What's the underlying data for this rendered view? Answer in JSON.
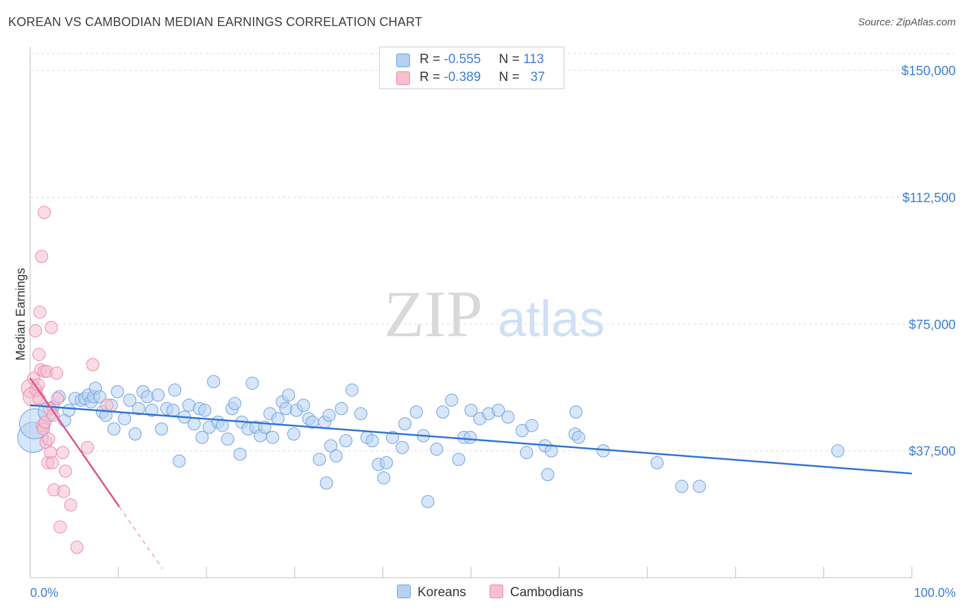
{
  "header": {
    "title": "KOREAN VS CAMBODIAN MEDIAN EARNINGS CORRELATION CHART",
    "source": "Source: ZipAtlas.com"
  },
  "watermark": {
    "part1": "ZIP",
    "part2": "atlas"
  },
  "legend": {
    "rows": [
      {
        "r_label": "R =",
        "r_value": "-0.555",
        "n_label": "N =",
        "n_value": "113"
      },
      {
        "r_label": "R =",
        "r_value": "-0.389",
        "n_label": "N =",
        "n_value": "37"
      }
    ],
    "bottom": {
      "koreans": "Koreans",
      "cambodians": "Cambodians"
    }
  },
  "colors": {
    "korean_fill": "#b7d1f3",
    "korean_stroke": "#6fa0e2",
    "korean_line": "#2f72d2",
    "cambodian_fill": "#f7bfd0",
    "cambodian_stroke": "#e98aa9",
    "cambodian_line": "#e0508a",
    "axis_label": "#3b7dd8",
    "grid": "#dcdcdc"
  },
  "chart_data": {
    "type": "scatter",
    "title": "KOREAN VS CAMBODIAN MEDIAN EARNINGS CORRELATION CHART",
    "xlabel": "",
    "ylabel": "Median Earnings",
    "xlim": [
      0,
      100
    ],
    "ylim": [
      0,
      155000
    ],
    "x_tick_labels": {
      "min": "0.0%",
      "max": "100.0%"
    },
    "y_ticks": [
      37500,
      75000,
      112500,
      150000
    ],
    "y_tick_labels": [
      "$37,500",
      "$75,000",
      "$112,500",
      "$150,000"
    ],
    "series": [
      {
        "name": "Koreans",
        "trend": {
          "x": [
            0,
            100
          ],
          "y": [
            51000,
            30800
          ]
        },
        "points": [
          {
            "x": 0.3,
            "y": 41500,
            "s": "big"
          },
          {
            "x": 0.5,
            "y": 45500,
            "s": "big"
          },
          {
            "x": 2.0,
            "y": 49000,
            "s": "med"
          },
          {
            "x": 2.6,
            "y": 50500
          },
          {
            "x": 3.3,
            "y": 53500
          },
          {
            "x": 3.9,
            "y": 46500
          },
          {
            "x": 4.4,
            "y": 49500
          },
          {
            "x": 5.1,
            "y": 53000
          },
          {
            "x": 5.8,
            "y": 52500
          },
          {
            "x": 6.2,
            "y": 53000
          },
          {
            "x": 6.6,
            "y": 54000
          },
          {
            "x": 6.9,
            "y": 52000
          },
          {
            "x": 7.2,
            "y": 53500
          },
          {
            "x": 7.4,
            "y": 56000
          },
          {
            "x": 7.9,
            "y": 53500
          },
          {
            "x": 8.2,
            "y": 49000
          },
          {
            "x": 8.6,
            "y": 48000
          },
          {
            "x": 9.2,
            "y": 51000
          },
          {
            "x": 9.5,
            "y": 44000
          },
          {
            "x": 9.9,
            "y": 55000
          },
          {
            "x": 10.7,
            "y": 47000
          },
          {
            "x": 11.3,
            "y": 52500
          },
          {
            "x": 11.9,
            "y": 42500
          },
          {
            "x": 12.3,
            "y": 50000
          },
          {
            "x": 12.8,
            "y": 55000
          },
          {
            "x": 13.3,
            "y": 53500
          },
          {
            "x": 13.8,
            "y": 49500
          },
          {
            "x": 14.5,
            "y": 54000
          },
          {
            "x": 14.9,
            "y": 44000
          },
          {
            "x": 15.5,
            "y": 50000
          },
          {
            "x": 16.2,
            "y": 49500
          },
          {
            "x": 16.4,
            "y": 55500
          },
          {
            "x": 16.9,
            "y": 34500
          },
          {
            "x": 17.5,
            "y": 47500
          },
          {
            "x": 18.0,
            "y": 51000
          },
          {
            "x": 18.6,
            "y": 45500
          },
          {
            "x": 19.2,
            "y": 50000
          },
          {
            "x": 19.5,
            "y": 41500
          },
          {
            "x": 19.8,
            "y": 49500
          },
          {
            "x": 20.3,
            "y": 44500
          },
          {
            "x": 20.8,
            "y": 58000
          },
          {
            "x": 21.3,
            "y": 46000
          },
          {
            "x": 21.8,
            "y": 45000
          },
          {
            "x": 22.4,
            "y": 41000
          },
          {
            "x": 22.9,
            "y": 50000
          },
          {
            "x": 23.2,
            "y": 51500
          },
          {
            "x": 23.8,
            "y": 36500
          },
          {
            "x": 24.0,
            "y": 46000
          },
          {
            "x": 24.7,
            "y": 44000
          },
          {
            "x": 25.2,
            "y": 57500
          },
          {
            "x": 25.6,
            "y": 44500
          },
          {
            "x": 26.1,
            "y": 42000
          },
          {
            "x": 26.6,
            "y": 44500
          },
          {
            "x": 27.2,
            "y": 48500
          },
          {
            "x": 27.5,
            "y": 41500
          },
          {
            "x": 28.1,
            "y": 47000
          },
          {
            "x": 28.6,
            "y": 52000
          },
          {
            "x": 29.0,
            "y": 50000
          },
          {
            "x": 29.3,
            "y": 54000
          },
          {
            "x": 29.9,
            "y": 42500
          },
          {
            "x": 30.2,
            "y": 49500
          },
          {
            "x": 31.0,
            "y": 51000
          },
          {
            "x": 31.6,
            "y": 47000
          },
          {
            "x": 32.0,
            "y": 46000
          },
          {
            "x": 32.8,
            "y": 35000
          },
          {
            "x": 33.4,
            "y": 46000
          },
          {
            "x": 33.6,
            "y": 28000
          },
          {
            "x": 34.1,
            "y": 39000
          },
          {
            "x": 34.7,
            "y": 36000
          },
          {
            "x": 35.3,
            "y": 50000
          },
          {
            "x": 35.8,
            "y": 40500
          },
          {
            "x": 36.5,
            "y": 55500
          },
          {
            "x": 37.5,
            "y": 48500
          },
          {
            "x": 38.2,
            "y": 41500
          },
          {
            "x": 38.8,
            "y": 40500
          },
          {
            "x": 39.5,
            "y": 33500
          },
          {
            "x": 40.1,
            "y": 29500
          },
          {
            "x": 40.4,
            "y": 34000
          },
          {
            "x": 41.1,
            "y": 41500
          },
          {
            "x": 42.2,
            "y": 38500
          },
          {
            "x": 42.5,
            "y": 45500
          },
          {
            "x": 43.8,
            "y": 49000
          },
          {
            "x": 44.6,
            "y": 42000
          },
          {
            "x": 45.1,
            "y": 22500
          },
          {
            "x": 46.1,
            "y": 38000
          },
          {
            "x": 46.8,
            "y": 49000
          },
          {
            "x": 47.8,
            "y": 52500
          },
          {
            "x": 48.6,
            "y": 35000
          },
          {
            "x": 49.2,
            "y": 41500
          },
          {
            "x": 49.9,
            "y": 41500
          },
          {
            "x": 50.0,
            "y": 49500
          },
          {
            "x": 51.0,
            "y": 47000
          },
          {
            "x": 52.0,
            "y": 48500
          },
          {
            "x": 53.1,
            "y": 49500
          },
          {
            "x": 54.2,
            "y": 47500
          },
          {
            "x": 55.8,
            "y": 43500
          },
          {
            "x": 56.3,
            "y": 37000
          },
          {
            "x": 56.9,
            "y": 45000
          },
          {
            "x": 58.4,
            "y": 39000
          },
          {
            "x": 58.7,
            "y": 30500
          },
          {
            "x": 59.1,
            "y": 37500
          },
          {
            "x": 61.8,
            "y": 42500
          },
          {
            "x": 61.9,
            "y": 49000
          },
          {
            "x": 62.2,
            "y": 41500
          },
          {
            "x": 65.0,
            "y": 37500
          },
          {
            "x": 71.1,
            "y": 34000
          },
          {
            "x": 73.9,
            "y": 27000
          },
          {
            "x": 75.9,
            "y": 27000
          },
          {
            "x": 91.6,
            "y": 37500
          },
          {
            "x": 33.9,
            "y": 48000
          }
        ]
      },
      {
        "name": "Cambodians",
        "trend": {
          "x": [
            0,
            10.1
          ],
          "y": [
            59000,
            21000
          ]
        },
        "trend_dashed": {
          "x": [
            10.1,
            15.0
          ],
          "y": [
            21000,
            2700
          ]
        },
        "points": [
          {
            "x": 0.1,
            "y": 56000,
            "s": "med"
          },
          {
            "x": 0.3,
            "y": 53500,
            "s": "med"
          },
          {
            "x": 0.4,
            "y": 59000
          },
          {
            "x": 0.6,
            "y": 73000
          },
          {
            "x": 0.7,
            "y": 55500
          },
          {
            "x": 0.9,
            "y": 57000
          },
          {
            "x": 1.0,
            "y": 53000
          },
          {
            "x": 1.0,
            "y": 66000
          },
          {
            "x": 1.1,
            "y": 78500
          },
          {
            "x": 1.2,
            "y": 61500
          },
          {
            "x": 1.3,
            "y": 95000
          },
          {
            "x": 1.4,
            "y": 45000
          },
          {
            "x": 1.5,
            "y": 44000
          },
          {
            "x": 1.6,
            "y": 61000
          },
          {
            "x": 1.6,
            "y": 108000
          },
          {
            "x": 1.7,
            "y": 46000
          },
          {
            "x": 1.8,
            "y": 40000
          },
          {
            "x": 1.9,
            "y": 61000
          },
          {
            "x": 2.0,
            "y": 34000
          },
          {
            "x": 2.1,
            "y": 41000
          },
          {
            "x": 2.2,
            "y": 50000
          },
          {
            "x": 2.3,
            "y": 37000
          },
          {
            "x": 2.4,
            "y": 74000
          },
          {
            "x": 2.5,
            "y": 34000
          },
          {
            "x": 2.6,
            "y": 48000
          },
          {
            "x": 2.7,
            "y": 26000
          },
          {
            "x": 3.0,
            "y": 60500
          },
          {
            "x": 3.1,
            "y": 53000
          },
          {
            "x": 3.4,
            "y": 15000
          },
          {
            "x": 3.7,
            "y": 37000
          },
          {
            "x": 3.8,
            "y": 25500
          },
          {
            "x": 4.0,
            "y": 31500
          },
          {
            "x": 4.6,
            "y": 21500
          },
          {
            "x": 5.3,
            "y": 9000
          },
          {
            "x": 6.5,
            "y": 38500
          },
          {
            "x": 7.1,
            "y": 63000
          },
          {
            "x": 8.7,
            "y": 51000
          }
        ]
      }
    ]
  }
}
